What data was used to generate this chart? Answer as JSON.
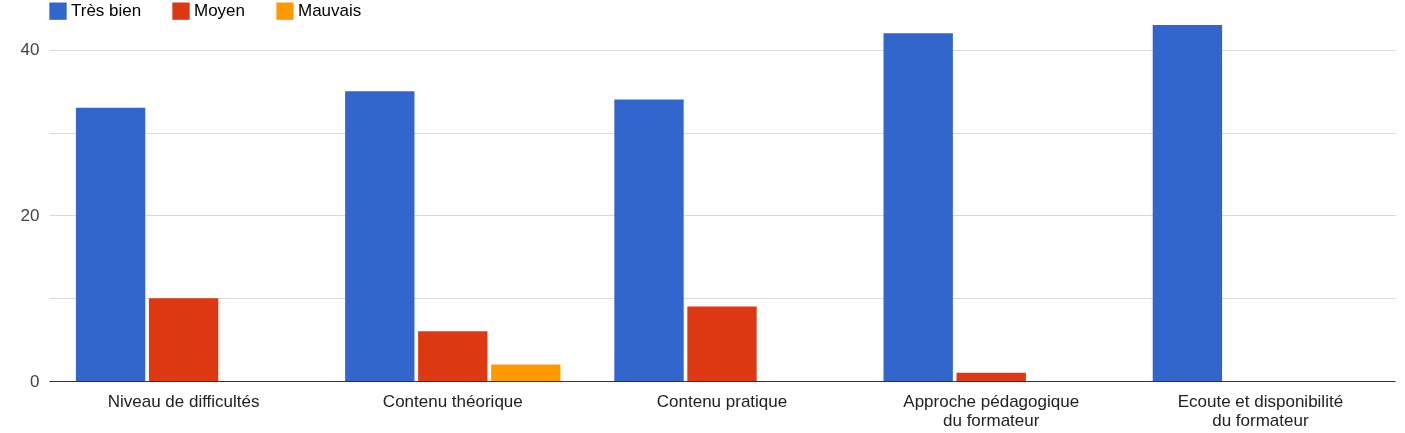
{
  "chart_data": {
    "type": "bar",
    "categories": [
      "Niveau de difficultés",
      "Contenu théorique",
      "Contenu pratique",
      "Approche pédagogique du formateur",
      "Ecoute et disponibilité du formateur"
    ],
    "series": [
      {
        "name": "Très bien",
        "color": "#3366cc",
        "values": [
          33,
          35,
          34,
          42,
          43
        ]
      },
      {
        "name": "Moyen",
        "color": "#dc3912",
        "values": [
          10,
          6,
          9,
          1,
          0
        ]
      },
      {
        "name": "Mauvais",
        "color": "#ff9900",
        "values": [
          0,
          2,
          0,
          0,
          0
        ]
      }
    ],
    "ylim": [
      0,
      43
    ],
    "yticks": [
      0,
      {
        "value": 10,
        "label": null
      },
      20,
      {
        "value": 30,
        "label": null
      },
      40
    ],
    "grid": "y",
    "legend": "top left"
  }
}
